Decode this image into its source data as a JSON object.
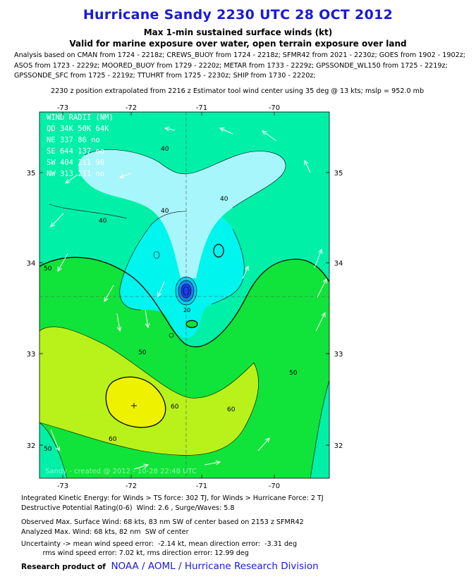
{
  "header": {
    "title": "Hurricane Sandy 2230 UTC 28 OCT 2012",
    "subtitle1": "Max 1-min sustained surface winds (kt)",
    "subtitle2": "Valid for marine exposure over water, open terrain exposure over land"
  },
  "analysis_lines": [
    "Analysis based on CMAN from 1724 - 2218z; CREWS_BUOY from 1724 - 2218z; SFMR42 from 2021 - 2230z; GOES from 1902 - 1902z;",
    "ASOS from 1723 - 2229z; MOORED_BUOY from 1729 - 2220z; METAR from 1733 - 2229z; GPSSONDE_WL150 from 1725 - 2219z;",
    "GPSSONDE_SFC from 1725 - 2219z; TTUHRT from 1725 - 2230z; SHIP from 1730 - 2220z;"
  ],
  "position_line": "2230 z position extrapolated from 2216 z Estimator tool wind center using 35 deg @ 13 kts; mslp = 952.0 mb",
  "map": {
    "lon_ticks": [
      "-73",
      "-72",
      "-71",
      "-70"
    ],
    "lat_ticks": [
      "35",
      "34",
      "33",
      "32"
    ],
    "contour_labels": [
      "40",
      "40",
      "40",
      "40",
      "50",
      "50",
      "50",
      "50",
      "60",
      "60",
      "60",
      "20"
    ],
    "watermark": "Sandy  -  created @ 2012 - 10-28  22:48  UTC",
    "wind_radii": {
      "title": "WIND RADII (NM)",
      "header": "QD 34K 50K 64K",
      "rows": [
        "NE 337  86  no",
        "SE 644 137  no",
        "SW 404 211  98",
        "NW 313 211  no"
      ]
    },
    "colors": {
      "cyan_light": "#a7f6fb",
      "cyan": "#00f5ee",
      "aqua_green": "#00f0a8",
      "green_bright": "#10e43a",
      "yellow_green": "#b8f21a",
      "yellow": "#eef200",
      "center_blue": "#1a3cf0"
    }
  },
  "stats": {
    "ike": "Integrated Kinetic Energy: for Winds > TS force: 302 TJ, for Winds > Hurricane Force: 2 TJ",
    "dpr": "Destructive Potential Rating(0-6)  Wind: 2.6 , Surge/Waves: 5.8",
    "observed": "Observed Max. Surface Wind: 68 kts, 83 nm SW of center based on 2153 z SFMR42",
    "analyzed": "Analyzed Max. Wind: 68 kts, 82 nm  SW of center",
    "uncert1": "Uncertainty -> mean wind speed error:  -2.14 kt, mean direction error:  -3.31 deg",
    "uncert2": "          rms wind speed error: 7.02 kt, rms direction error: 12.99 deg"
  },
  "footer": {
    "label": "Research product of",
    "org": "NOAA  /  AOML  /  Hurricane Research Division"
  }
}
